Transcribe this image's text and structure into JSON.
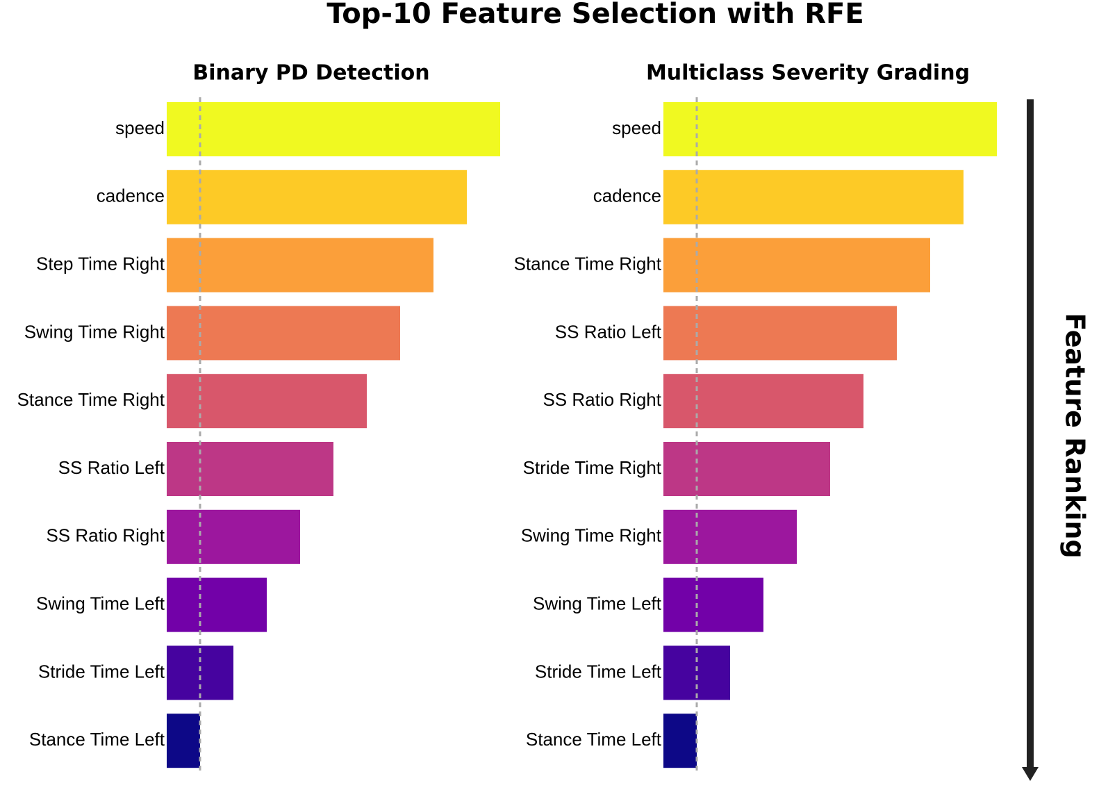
{
  "title": "Top-10 Feature Selection with RFE",
  "ranking_label": "Feature Ranking",
  "chart_data": [
    {
      "type": "bar",
      "orientation": "horizontal",
      "title": "Binary PD Detection",
      "categories": [
        "speed",
        "cadence",
        "Step Time Right",
        "Swing Time Right",
        "Stance Time Right",
        "SS Ratio Left",
        "SS Ratio Right",
        "Swing Time Left",
        "Stride Time Left",
        "Stance Time Left"
      ],
      "values": [
        10,
        9,
        8,
        7,
        6,
        5,
        4,
        3,
        2,
        1
      ],
      "colors": [
        "#f0f921",
        "#fdca26",
        "#fb9f3a",
        "#ed7953",
        "#d8576b",
        "#bd3786",
        "#9c179e",
        "#7201a8",
        "#46039f",
        "#0d0887"
      ],
      "xlim": [
        0,
        10
      ],
      "reference_x": 1
    },
    {
      "type": "bar",
      "orientation": "horizontal",
      "title": "Multiclass Severity Grading",
      "categories": [
        "speed",
        "cadence",
        "Stance Time Right",
        "SS Ratio Left",
        "SS Ratio Right",
        "Stride Time Right",
        "Swing Time Right",
        "Swing Time Left",
        "Stride Time Left",
        "Stance Time Left"
      ],
      "values": [
        10,
        9,
        8,
        7,
        6,
        5,
        4,
        3,
        2,
        1
      ],
      "colors": [
        "#f0f921",
        "#fdca26",
        "#fb9f3a",
        "#ed7953",
        "#d8576b",
        "#bd3786",
        "#9c179e",
        "#7201a8",
        "#46039f",
        "#0d0887"
      ],
      "xlim": [
        0,
        10
      ],
      "reference_x": 1
    }
  ]
}
